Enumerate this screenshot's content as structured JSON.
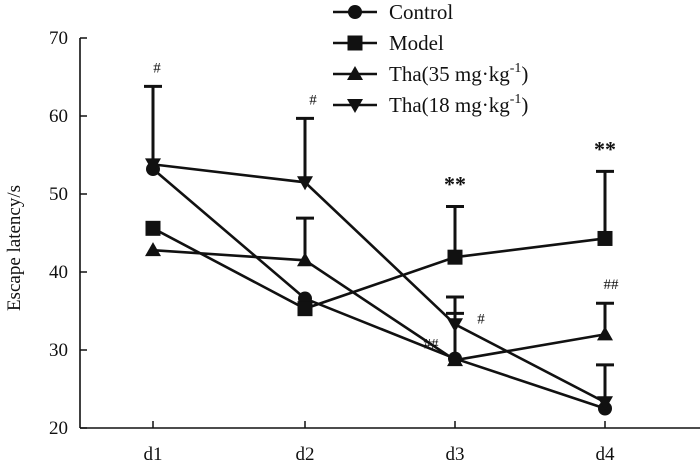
{
  "chart_data": {
    "type": "line",
    "title": "",
    "xlabel": "",
    "ylabel": "Escape latency/s",
    "ylim": [
      20,
      70
    ],
    "yticks": [
      "20",
      "30",
      "40",
      "50",
      "60",
      "70"
    ],
    "categories": [
      "d1",
      "d2",
      "d3",
      "d4"
    ],
    "grid": false,
    "legend_position": "top-right",
    "series": [
      {
        "name": "Control",
        "legend": {
          "main": "Control",
          "unit": "",
          "sup": "",
          "close": ""
        },
        "marker": "circle",
        "values": [
          53.2,
          36.6,
          28.9,
          22.5
        ],
        "errors": [
          null,
          null,
          null,
          null
        ]
      },
      {
        "name": "Model",
        "legend": {
          "main": "Model",
          "unit": "",
          "sup": "",
          "close": ""
        },
        "marker": "square",
        "values": [
          45.6,
          35.3,
          41.9,
          44.3
        ],
        "errors": [
          null,
          null,
          6.5,
          8.6
        ]
      },
      {
        "name": "Tha(35 mg·kg-1)",
        "legend": {
          "main": "Tha(35 mg·kg",
          "unit": "",
          "sup": "-1",
          "close": ")"
        },
        "marker": "triangle-up",
        "values": [
          42.8,
          41.5,
          28.7,
          32.0
        ],
        "errors": [
          null,
          5.4,
          6.0,
          4.0
        ]
      },
      {
        "name": "Tha(18 mg·kg-1)",
        "legend": {
          "main": "Tha(18 mg·kg",
          "unit": "",
          "sup": "-1",
          "close": ")"
        },
        "marker": "triangle-down",
        "values": [
          53.8,
          51.5,
          33.3,
          23.3
        ],
        "errors": [
          10.0,
          8.2,
          3.5,
          4.8
        ]
      }
    ],
    "annotations": [
      {
        "text": "#",
        "category": "d1",
        "y": 65.6,
        "style": "hash",
        "dx": 4
      },
      {
        "text": "#",
        "category": "d2",
        "y": 61.5,
        "style": "hash",
        "dx": 8
      },
      {
        "text": "**",
        "category": "d3",
        "y": 50.3,
        "style": "star",
        "dx": 0
      },
      {
        "text": "**",
        "category": "d4",
        "y": 54.8,
        "style": "star",
        "dx": 0
      },
      {
        "text": "#",
        "category": "d3",
        "y": 33.4,
        "style": "hash",
        "dx": 26
      },
      {
        "text": "##",
        "category": "d3",
        "y": 30.2,
        "style": "hash",
        "dx": -24
      },
      {
        "text": "##",
        "category": "d4",
        "y": 37.8,
        "style": "hash",
        "dx": 6
      }
    ]
  }
}
